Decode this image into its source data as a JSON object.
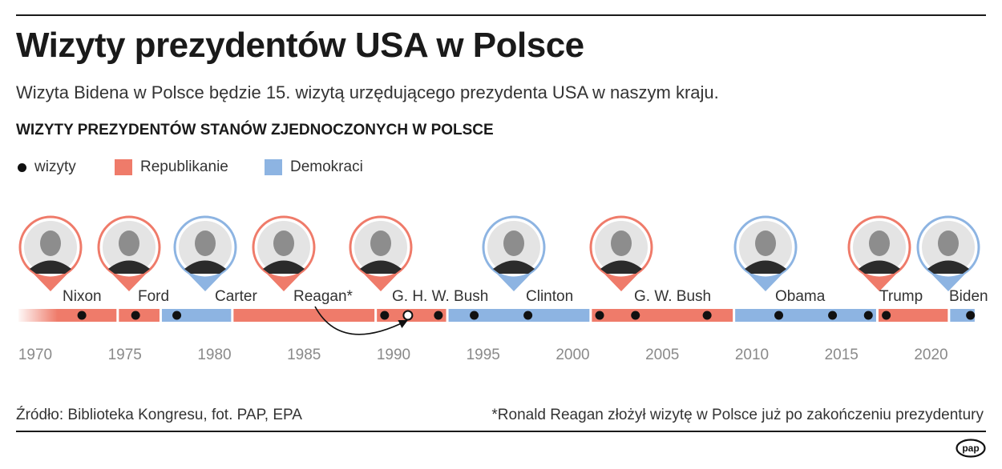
{
  "header": {
    "title": "Wizyty prezydentów USA w Polsce",
    "subtitle": "Wizyta Bidena w Polsce będzie 15. wizytą urzędującego prezydenta USA w naszym kraju."
  },
  "legend": {
    "visits_label": "wizyty",
    "republicans_label": "Republikanie",
    "democrats_label": "Demokraci"
  },
  "colors": {
    "republican": "#ef7b6a",
    "democrat": "#8db4e2",
    "dot": "#111111",
    "axis_label": "#8a8a8a"
  },
  "footer": {
    "source": "Źródło: Biblioteka Kongresu, fot. PAP, EPA",
    "footnote": "*Ronald Reagan złożył wizytę w Polsce już po zakończeniu prezydentury",
    "logo_text": "pap"
  },
  "chart_data": {
    "type": "timeline",
    "title": "WIZYTY PREZYDENTÓW STANÓW ZJEDNOCZONYCH W POLSCE",
    "x_ticks": [
      1970,
      1975,
      1980,
      1985,
      1990,
      1995,
      2000,
      2005,
      2010,
      2015,
      2020
    ],
    "xlim": [
      1968,
      2024
    ],
    "terms": [
      {
        "president": "Nixon",
        "party": "Republikanie",
        "start": 1969.0,
        "end": 1974.6,
        "visits": [
          1972.6
        ]
      },
      {
        "president": "Ford",
        "party": "Republikanie",
        "start": 1974.6,
        "end": 1977.0,
        "visits": [
          1975.6
        ]
      },
      {
        "president": "Carter",
        "party": "Demokraci",
        "start": 1977.0,
        "end": 1981.0,
        "visits": [
          1977.9
        ]
      },
      {
        "president": "Reagan*",
        "party": "Republikanie",
        "start": 1981.0,
        "end": 1989.0,
        "visits": []
      },
      {
        "president": "G. H. W. Bush",
        "party": "Republikanie",
        "start": 1989.0,
        "end": 1993.0,
        "visits": [
          1989.5,
          1992.5
        ],
        "visits_after_term_by": {
          "president": "Reagan*",
          "year": 1990.8
        }
      },
      {
        "president": "Clinton",
        "party": "Demokraci",
        "start": 1993.0,
        "end": 2001.0,
        "visits": [
          1994.5,
          1997.5
        ]
      },
      {
        "president": "G. W. Bush",
        "party": "Republikanie",
        "start": 2001.0,
        "end": 2009.0,
        "visits": [
          2001.5,
          2003.5,
          2007.5
        ]
      },
      {
        "president": "Obama",
        "party": "Demokraci",
        "start": 2009.0,
        "end": 2017.0,
        "visits": [
          2011.5,
          2014.5,
          2016.5
        ]
      },
      {
        "president": "Trump",
        "party": "Republikanie",
        "start": 2017.0,
        "end": 2021.0,
        "visits": [
          2017.5
        ]
      },
      {
        "president": "Biden",
        "party": "Demokraci",
        "start": 2021.0,
        "end": 2022.5,
        "visits": [
          2022.2
        ]
      }
    ],
    "grid": false,
    "legend_position": "top-left"
  }
}
